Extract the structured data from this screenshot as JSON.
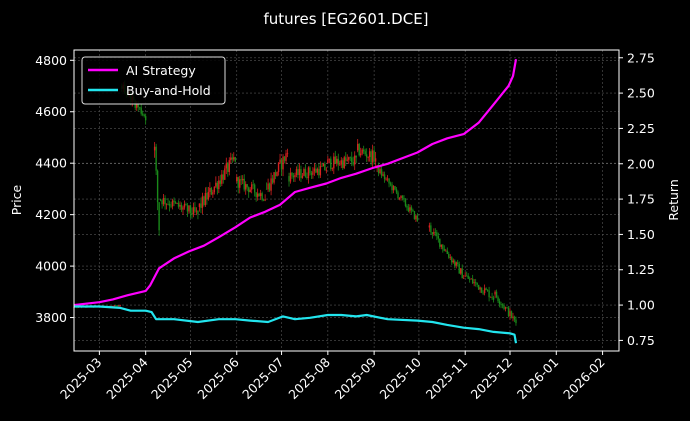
{
  "chart_data": {
    "type": "line",
    "title": "futures [EG2601.DCE]",
    "ylabel": "Price",
    "y2label": "Return",
    "x_tick_labels": [
      "2025-03",
      "2025-04",
      "2025-05",
      "2025-06",
      "2025-07",
      "2025-08",
      "2025-09",
      "2025-10",
      "2025-11",
      "2025-12",
      "2026-01",
      "2026-02"
    ],
    "xlim": [
      "2025-02-12",
      "2026-02-12"
    ],
    "ylim": [
      3670,
      4840
    ],
    "y_ticks": [
      3800,
      4000,
      4200,
      4400,
      4600,
      4800
    ],
    "y2lim": [
      0.675,
      2.805
    ],
    "y2_ticks": [
      0.75,
      1.0,
      1.25,
      1.5,
      1.75,
      2.0,
      2.25,
      2.5,
      2.75
    ],
    "y2_tick_labels": [
      "0.75",
      "1.00",
      "1.25",
      "1.50",
      "1.75",
      "2.00",
      "2.25",
      "2.50",
      "2.75"
    ],
    "grid": true,
    "legend_position": "top-left",
    "colors": {
      "up": "#d62020",
      "down": "#1a8a1a",
      "ai": "#ff00ff",
      "bh": "#22e5ee",
      "grid": "#555555"
    },
    "candles": {
      "segments": [
        {
          "from": "2025-02-12",
          "to": "2025-03-15",
          "start": 3840,
          "end": 3845,
          "vol": 6
        },
        {
          "from": "2025-03-16",
          "to": "2025-04-01",
          "start": 4700,
          "end": 4580,
          "vol": 35
        },
        {
          "from": "2025-04-07",
          "to": "2025-04-10",
          "start": 4450,
          "end": 4150,
          "vol": 70
        },
        {
          "from": "2025-04-11",
          "to": "2025-05-06",
          "start": 4260,
          "end": 4200,
          "vol": 45
        },
        {
          "from": "2025-05-07",
          "to": "2025-05-31",
          "start": 4230,
          "end": 4420,
          "vol": 55
        },
        {
          "from": "2025-06-01",
          "to": "2025-06-20",
          "start": 4330,
          "end": 4270,
          "vol": 45
        },
        {
          "from": "2025-06-21",
          "to": "2025-07-05",
          "start": 4300,
          "end": 4440,
          "vol": 55
        },
        {
          "from": "2025-07-06",
          "to": "2025-07-31",
          "start": 4350,
          "end": 4380,
          "vol": 45
        },
        {
          "from": "2025-08-01",
          "to": "2025-08-20",
          "start": 4400,
          "end": 4410,
          "vol": 50
        },
        {
          "from": "2025-08-21",
          "to": "2025-09-02",
          "start": 4450,
          "end": 4420,
          "vol": 50
        },
        {
          "from": "2025-09-03",
          "to": "2025-09-30",
          "start": 4380,
          "end": 4180,
          "vol": 30
        },
        {
          "from": "2025-10-08",
          "to": "2025-10-31",
          "start": 4150,
          "end": 3960,
          "vol": 35
        },
        {
          "from": "2025-11-01",
          "to": "2025-11-20",
          "start": 3960,
          "end": 3880,
          "vol": 35
        },
        {
          "from": "2025-11-21",
          "to": "2025-12-05",
          "start": 3890,
          "end": 3780,
          "vol": 30
        }
      ]
    },
    "series": [
      {
        "name": "AI Strategy",
        "x": [
          "2025-02-12",
          "2025-02-20",
          "2025-03-01",
          "2025-03-10",
          "2025-03-20",
          "2025-04-01",
          "2025-04-04",
          "2025-04-10",
          "2025-04-20",
          "2025-04-30",
          "2025-05-10",
          "2025-05-20",
          "2025-05-31",
          "2025-06-10",
          "2025-06-20",
          "2025-06-30",
          "2025-07-10",
          "2025-07-20",
          "2025-07-31",
          "2025-08-10",
          "2025-08-20",
          "2025-08-31",
          "2025-09-10",
          "2025-09-20",
          "2025-09-30",
          "2025-10-10",
          "2025-10-20",
          "2025-10-31",
          "2025-11-10",
          "2025-11-20",
          "2025-11-30",
          "2025-12-03",
          "2025-12-05"
        ],
        "values": [
          1.0,
          1.01,
          1.02,
          1.04,
          1.07,
          1.1,
          1.14,
          1.26,
          1.33,
          1.38,
          1.42,
          1.48,
          1.55,
          1.62,
          1.66,
          1.71,
          1.8,
          1.83,
          1.86,
          1.9,
          1.93,
          1.97,
          2.0,
          2.04,
          2.08,
          2.14,
          2.18,
          2.21,
          2.29,
          2.42,
          2.55,
          2.62,
          2.74
        ]
      },
      {
        "name": "Buy-and-Hold",
        "x": [
          "2025-02-12",
          "2025-03-01",
          "2025-03-15",
          "2025-03-22",
          "2025-04-01",
          "2025-04-05",
          "2025-04-08",
          "2025-04-20",
          "2025-05-06",
          "2025-05-20",
          "2025-05-31",
          "2025-06-10",
          "2025-06-22",
          "2025-07-02",
          "2025-07-10",
          "2025-07-20",
          "2025-08-01",
          "2025-08-10",
          "2025-08-20",
          "2025-08-27",
          "2025-09-10",
          "2025-09-30",
          "2025-10-10",
          "2025-10-20",
          "2025-10-31",
          "2025-11-10",
          "2025-11-20",
          "2025-12-01",
          "2025-12-04",
          "2025-12-05"
        ],
        "values": [
          0.99,
          0.99,
          0.98,
          0.96,
          0.96,
          0.95,
          0.9,
          0.9,
          0.88,
          0.9,
          0.9,
          0.89,
          0.88,
          0.92,
          0.9,
          0.91,
          0.93,
          0.93,
          0.92,
          0.93,
          0.9,
          0.89,
          0.88,
          0.86,
          0.84,
          0.83,
          0.81,
          0.8,
          0.79,
          0.73
        ]
      }
    ]
  }
}
